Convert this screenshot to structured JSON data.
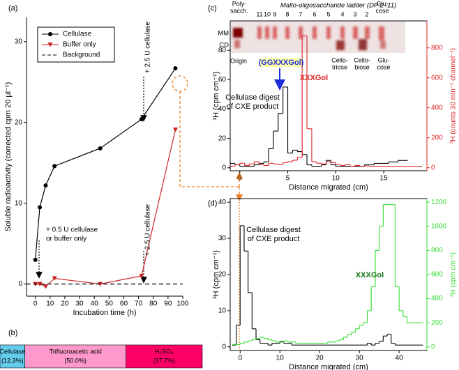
{
  "chart_data": [
    {
      "type": "line",
      "panel_label": "(a)",
      "x_label": "Incubation time (h)",
      "y_label": "Soluble radioactivity (corrected cpm 20 µl⁻¹)",
      "xlim": [
        -6,
        100
      ],
      "xticks": [
        0,
        10,
        20,
        30,
        40,
        50,
        60,
        70,
        80,
        90,
        100
      ],
      "ylim": [
        -1.5,
        33
      ],
      "yticks": [
        0,
        10,
        20,
        30
      ],
      "legend": "upper left",
      "x": [
        0,
        3,
        7,
        13,
        44,
        72,
        95
      ],
      "series": [
        {
          "name": "Cellulase",
          "color": "#000000",
          "marker": "circle",
          "values": [
            3.0,
            9.5,
            12.2,
            14.6,
            16.8,
            20.4,
            26.7
          ]
        },
        {
          "name": "Buffer only",
          "color": "#cc2222",
          "marker": "triangle-down",
          "values": [
            0,
            0,
            -0.3,
            0.7,
            0,
            1.0,
            19.1
          ]
        },
        {
          "name": "Background",
          "color": "#000000",
          "dash": true,
          "x": [
            -6,
            100
          ],
          "values": [
            0,
            0
          ]
        }
      ],
      "annotations": [
        "+ 0.5 U cellulase",
        "or buffer only",
        "+ 2.5 U cellulase",
        "+ 2.5 U cellulase"
      ]
    },
    {
      "type": "bar",
      "orientation": "horizontal",
      "stacked": true,
      "panel_label": "(b)",
      "xlim": [
        0,
        100
      ],
      "series": [
        {
          "name": "Cellulase",
          "color": "#66ccee",
          "values": [
            12.3
          ],
          "value_labels": [
            "(12.3%)"
          ]
        },
        {
          "name": "Trifluoroacetic acid",
          "color": "#ff99cc",
          "values": [
            50.0
          ],
          "value_labels": [
            "(50.0%)"
          ]
        },
        {
          "name": "H₂SO₄",
          "color": "#ff0066",
          "values": [
            37.7
          ],
          "value_labels": [
            "(37.7%)"
          ]
        }
      ]
    },
    {
      "type": "step",
      "panel_label": "(c)",
      "x_label": "Distance migrated (cm)",
      "y_label": "³H (cpm cm⁻¹)",
      "y2_label": "³H (counts 30 min⁻¹ channel⁻¹)",
      "xlim": [
        -1,
        19.5
      ],
      "xticks": [
        0,
        5,
        10,
        15
      ],
      "ylim": [
        -2,
        100
      ],
      "yticks": [
        0,
        20,
        40,
        60,
        80
      ],
      "y2lim": [
        -20,
        980
      ],
      "y2ticks": [
        0,
        200,
        400,
        600,
        800
      ],
      "series": [
        {
          "color": "#000000",
          "bins": [
            -1,
            -0.5,
            0,
            0.5,
            1,
            1.5,
            2,
            2.5,
            3,
            3.5,
            4,
            4.5,
            5,
            5.5,
            6,
            6.5,
            7,
            7.5,
            8,
            8.5,
            9,
            9.5,
            10,
            10.5,
            11,
            11.5,
            12,
            12.5,
            13,
            13.5,
            14,
            14.5,
            15,
            15.5,
            16,
            16.5,
            17,
            17.5
          ],
          "values": [
            3,
            2,
            1,
            1,
            1,
            2,
            3,
            4,
            13,
            25,
            37,
            55,
            10,
            12,
            11,
            9,
            2,
            1,
            1,
            2,
            5,
            2,
            1,
            1,
            1,
            1,
            1,
            1,
            2,
            2,
            3,
            3,
            3,
            4,
            4,
            5,
            5
          ]
        },
        {
          "color": "#dd2222",
          "axis": "y2",
          "bins": [
            -1,
            -0.5,
            0,
            0.5,
            1,
            1.5,
            2,
            2.5,
            3,
            3.5,
            4,
            4.5,
            5,
            5.5,
            6,
            6.5,
            7,
            7.5,
            8,
            8.5,
            9,
            9.5,
            10,
            10.5,
            11,
            11.5,
            12,
            12.5,
            13,
            13.5,
            14,
            14.5,
            15,
            15.5,
            16,
            16.5,
            17,
            17.5,
            18,
            18.5,
            19
          ],
          "values": [
            10,
            20,
            30,
            15,
            25,
            40,
            20,
            15,
            30,
            25,
            20,
            35,
            40,
            50,
            70,
            880,
            260,
            40,
            30,
            25,
            40,
            35,
            20,
            15,
            20,
            10,
            15,
            10,
            12,
            10,
            10,
            8,
            10,
            8,
            10,
            8,
            8,
            10,
            8,
            10
          ]
        }
      ],
      "annotations": [
        "(GGXXXGol)",
        "XXXGol",
        "Cellulase digest",
        "of CXE product"
      ],
      "gel": {
        "polysaccharide_label": [
          "Poly-",
          "sacch."
        ],
        "ladder_label": "Malto-oligosaccharide ladder (DP 2–11)",
        "ladder_numbers": [
          "11",
          "10",
          "9",
          "8",
          "7",
          "6",
          "5",
          "4",
          "3",
          "2"
        ],
        "top_glucose": [
          "Glu-",
          "cose"
        ],
        "row_labels": [
          "MM",
          "CD"
        ],
        "origin": "Origin",
        "cellotriose": [
          "Cello-",
          "triose"
        ],
        "cellobiose": [
          "Cello-",
          "biose"
        ],
        "bottom_glucose": [
          "Glu-",
          "cose"
        ]
      }
    },
    {
      "type": "step",
      "panel_label": "(d)",
      "x_label": "Distance migrated (cm)",
      "y_label": "³H (cpm cm⁻¹)",
      "y2_label": "³H (cpm cm⁻¹)",
      "xlim": [
        -2.5,
        47
      ],
      "xticks": [
        0,
        10,
        20,
        30,
        40
      ],
      "ylim": [
        -1,
        41
      ],
      "yticks": [
        0,
        10,
        20,
        30,
        40
      ],
      "y2lim": [
        -30,
        1230
      ],
      "y2ticks": [
        0,
        200,
        400,
        600,
        800,
        1000,
        1200
      ],
      "series": [
        {
          "color": "#000000",
          "bins": [
            -2,
            -1,
            0,
            1,
            2,
            3,
            4,
            5,
            6,
            7,
            8,
            9,
            10,
            11,
            12,
            13,
            14,
            15,
            16,
            17,
            18,
            19,
            20,
            21,
            22,
            23,
            24,
            25,
            26,
            27,
            28,
            29,
            30,
            31,
            32,
            33,
            34,
            35,
            36,
            37,
            38,
            39,
            40,
            41,
            42,
            43,
            44,
            45,
            46
          ],
          "values": [
            0.5,
            6,
            33.5,
            26.5,
            15,
            5,
            2,
            1,
            1,
            0.5,
            1,
            1,
            1.5,
            1,
            1,
            0.5,
            0.5,
            0.5,
            0.5,
            0.5,
            0.5,
            0.5,
            0.5,
            0.5,
            0.5,
            0.5,
            0.5,
            0.5,
            0.5,
            0.5,
            0.5,
            0.5,
            0.5,
            0.5,
            1,
            0.5,
            1,
            1.5,
            3,
            3.5,
            1,
            0.5,
            0.5,
            0.5,
            0.5,
            0.5,
            0.5,
            0.5
          ]
        },
        {
          "color": "#33dd33",
          "axis": "y2",
          "bins": [
            -2,
            -1,
            0,
            1,
            2,
            3,
            4,
            5,
            6,
            7,
            8,
            9,
            10,
            11,
            12,
            13,
            14,
            15,
            16,
            17,
            18,
            19,
            20,
            21,
            22,
            23,
            24,
            25,
            26,
            27,
            28,
            29,
            30,
            31,
            32,
            33,
            34,
            35,
            36,
            37,
            38,
            39,
            40,
            41,
            42,
            43,
            44,
            45,
            46
          ],
          "values": [
            20,
            20,
            30,
            40,
            50,
            60,
            70,
            80,
            70,
            60,
            50,
            40,
            40,
            50,
            40,
            40,
            30,
            30,
            30,
            30,
            30,
            30,
            30,
            30,
            40,
            40,
            50,
            60,
            80,
            100,
            120,
            150,
            180,
            200,
            300,
            500,
            800,
            1000,
            1180,
            1180,
            1180,
            500,
            300,
            250,
            200,
            200,
            200,
            200
          ]
        }
      ],
      "annotations": [
        "Cellulase digest",
        "of CXE product",
        "XXXGol"
      ]
    }
  ]
}
